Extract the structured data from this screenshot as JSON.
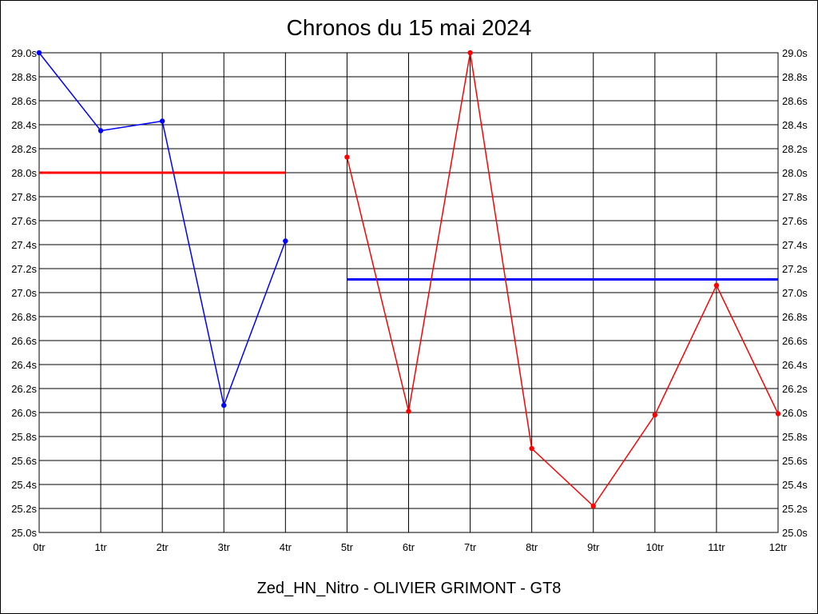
{
  "chart_data": {
    "type": "line",
    "title": "Chronos du 15 mai 2024",
    "subtitle": "Zed_HN_Nitro - OLIVIER GRIMONT - GT8",
    "x_ticks": [
      "0tr",
      "1tr",
      "2tr",
      "3tr",
      "4tr",
      "5tr",
      "6tr",
      "7tr",
      "8tr",
      "9tr",
      "10tr",
      "11tr",
      "12tr"
    ],
    "y_ticks_left": [
      "25.0s",
      "25.2s",
      "25.4s",
      "25.6s",
      "25.8s",
      "26.0s",
      "26.2s",
      "26.4s",
      "26.6s",
      "26.8s",
      "27.0s",
      "27.2s",
      "27.4s",
      "27.6s",
      "27.8s",
      "28.0s",
      "28.2s",
      "28.4s",
      "28.6s",
      "28.8s",
      "29.0s"
    ],
    "y_ticks_right": [
      "25.0s",
      "25.2s",
      "25.4s",
      "25.6s",
      "25.8s",
      "26.0s",
      "26.2s",
      "26.4s",
      "26.6s",
      "26.8s",
      "27.0s",
      "27.2s",
      "27.4s",
      "27.6s",
      "27.8s",
      "28.0s",
      "28.2s",
      "28.4s",
      "28.6s",
      "28.8s",
      "29.0s"
    ],
    "xlim": [
      0,
      12
    ],
    "ylim": [
      25.0,
      29.0
    ],
    "grid": true,
    "series": [
      {
        "color": "#0000ff",
        "x": [
          0,
          1,
          2,
          3,
          4
        ],
        "values": [
          29.0,
          28.35,
          28.43,
          26.06,
          27.43
        ]
      },
      {
        "color": "#ff0000",
        "x": [
          5,
          6,
          7,
          8,
          9,
          10,
          11,
          12
        ],
        "values": [
          28.13,
          26.01,
          29.0,
          25.7,
          25.22,
          25.98,
          27.06,
          25.99
        ]
      }
    ],
    "reference_lines": [
      {
        "color": "#ff0000",
        "x": [
          0,
          4
        ],
        "value": 28.0
      },
      {
        "color": "#0000ff",
        "x": [
          5,
          12
        ],
        "value": 27.11
      }
    ]
  }
}
